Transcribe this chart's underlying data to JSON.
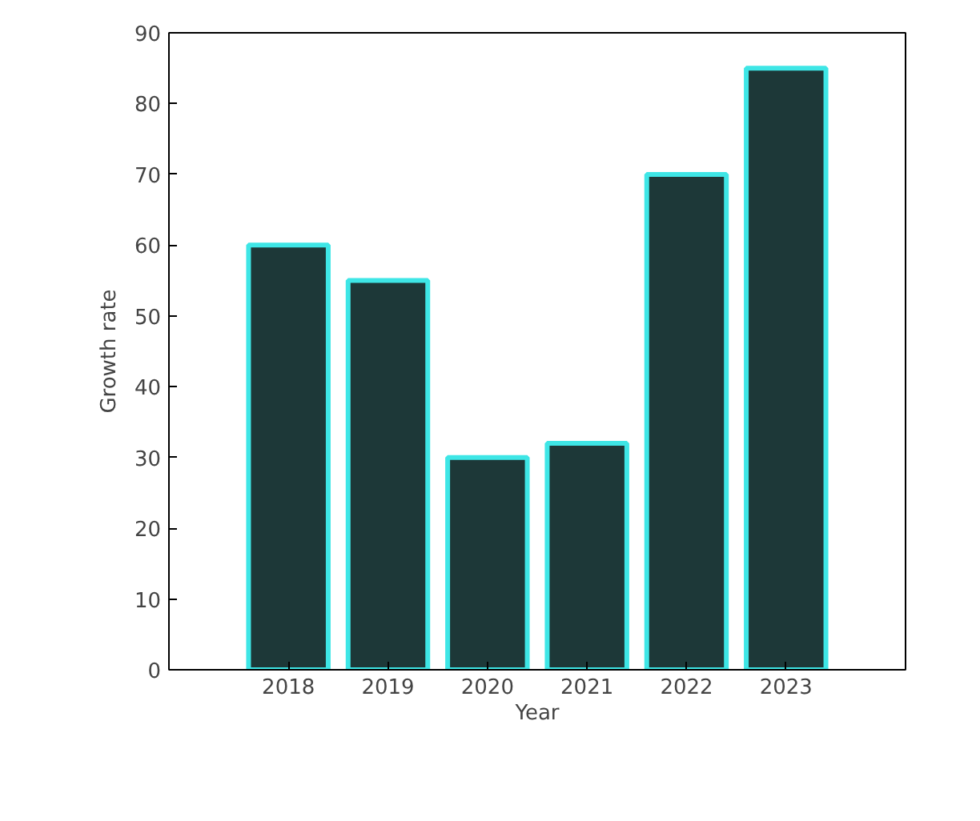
{
  "chart_data": {
    "type": "bar",
    "xlabel": "Year",
    "ylabel": "Growth rate",
    "categories": [
      "2018",
      "2019",
      "2020",
      "2021",
      "2022",
      "2023"
    ],
    "values": [
      60,
      55,
      30,
      32,
      70,
      85
    ],
    "color": "#1d3838",
    "ylim": [
      0,
      90
    ],
    "yticks": [
      0,
      10,
      20,
      30,
      40,
      50,
      60,
      70,
      80,
      90
    ],
    "grid": false
  }
}
